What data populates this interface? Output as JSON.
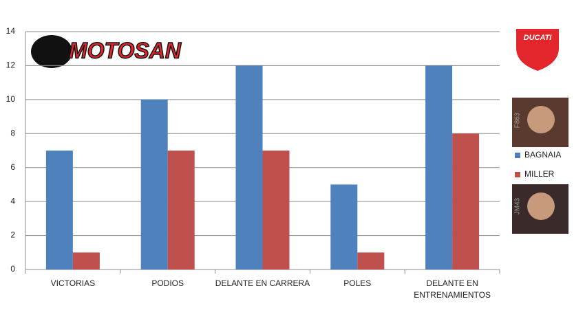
{
  "chart_data": {
    "type": "bar",
    "categories": [
      "VICTORIAS",
      "PODIOS",
      "DELANTE EN CARRERA",
      "POLES",
      "DELANTE EN ENTRENAMIENTOS"
    ],
    "series": [
      {
        "name": "BAGNAIA",
        "color": "#4f81bd",
        "values": [
          7,
          10,
          12,
          5,
          12
        ]
      },
      {
        "name": "MILLER",
        "color": "#c0504d",
        "values": [
          1,
          7,
          7,
          1,
          8
        ]
      }
    ],
    "ylim": [
      0,
      14
    ],
    "yticks": [
      0,
      2,
      4,
      6,
      8,
      10,
      12,
      14
    ],
    "grid": true
  },
  "logos": {
    "brand": "MOTOSAN",
    "team": "DUCATI"
  },
  "photos": [
    "F863",
    "JM43"
  ]
}
